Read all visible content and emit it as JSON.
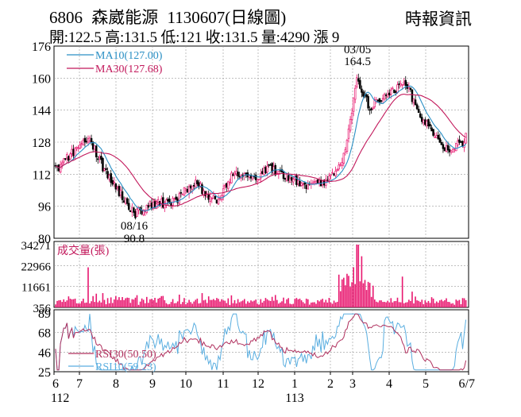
{
  "header": {
    "code": "6806",
    "name": "森崴能源",
    "date_label": "1130607(日線圖)",
    "source": "時報資訊",
    "ohlc": "開:122.5 高:131.5 低:121 收:131.5 量:4290 漲 9"
  },
  "colors": {
    "up": "#e8176f",
    "down": "#000000",
    "ma10": "#2a8fc4",
    "ma30": "#c2185b",
    "volume": "#e8176f",
    "rsi10": "#5aaee0",
    "rsi30": "#b0305e"
  },
  "chart_data": [
    {
      "type": "candlestick",
      "panel": "price",
      "yticks": [
        176,
        160,
        144,
        128,
        112,
        96,
        80
      ],
      "ylim": [
        80,
        176
      ],
      "legend": [
        {
          "name": "MA10(127.00)",
          "color": "#2a8fc4"
        },
        {
          "name": "MA30(127.68)",
          "color": "#c2185b"
        }
      ],
      "annotations": [
        {
          "date": "03/05",
          "value": "164.5",
          "type": "high"
        },
        {
          "date": "08/16",
          "value": "90.8",
          "type": "low"
        }
      ],
      "anchors": [
        {
          "x": "6/3",
          "close": 114
        },
        {
          "x": "7/8",
          "close": 131
        },
        {
          "x": "7/20",
          "close": 116
        },
        {
          "x": "8/16",
          "close": 92
        },
        {
          "x": "8/30",
          "close": 97
        },
        {
          "x": "9/20",
          "close": 98
        },
        {
          "x": "10/8",
          "close": 108
        },
        {
          "x": "10/25",
          "close": 98
        },
        {
          "x": "11/10",
          "close": 113
        },
        {
          "x": "11/28",
          "close": 110
        },
        {
          "x": "12/10",
          "close": 115
        },
        {
          "x": "12/25",
          "close": 110
        },
        {
          "x": "1/15",
          "close": 106
        },
        {
          "x": "2/1",
          "close": 110
        },
        {
          "x": "2/20",
          "close": 122
        },
        {
          "x": "3/5",
          "close": 160
        },
        {
          "x": "3/15",
          "close": 145
        },
        {
          "x": "4/1",
          "close": 153
        },
        {
          "x": "4/15",
          "close": 158
        },
        {
          "x": "4/25",
          "close": 142
        },
        {
          "x": "5/15",
          "close": 124
        },
        {
          "x": "5/28",
          "close": 128
        },
        {
          "x": "6/7",
          "close": 131.5
        }
      ]
    },
    {
      "type": "bar",
      "panel": "volume",
      "title": "成交量(張)",
      "yticks": [
        34271,
        22966,
        11661,
        356
      ],
      "ylim": [
        356,
        34271
      ],
      "peaks": [
        {
          "x": "7/8",
          "value": 22000
        },
        {
          "x": "3/5",
          "value": 34271
        },
        {
          "x": "3/8",
          "value": 28000
        },
        {
          "x": "4/12",
          "value": 17000
        },
        {
          "x": "6/7",
          "value": 4290
        }
      ]
    },
    {
      "type": "line",
      "panel": "rsi",
      "yticks": [
        89,
        68,
        46,
        25
      ],
      "ylim": [
        25,
        89
      ],
      "series": [
        {
          "name": "RSI30(50.50)",
          "color": "#b0305e"
        },
        {
          "name": "RSI10(59.23)",
          "color": "#5aaee0"
        }
      ]
    }
  ],
  "x_axis": {
    "month_labels": [
      "6",
      "7",
      "8",
      "9",
      "10",
      "11",
      "12",
      "1",
      "2",
      "3",
      "4",
      "5",
      "6/7"
    ],
    "year_labels": [
      {
        "label": "112",
        "at": "6"
      },
      {
        "label": "113",
        "at": "1"
      }
    ]
  }
}
